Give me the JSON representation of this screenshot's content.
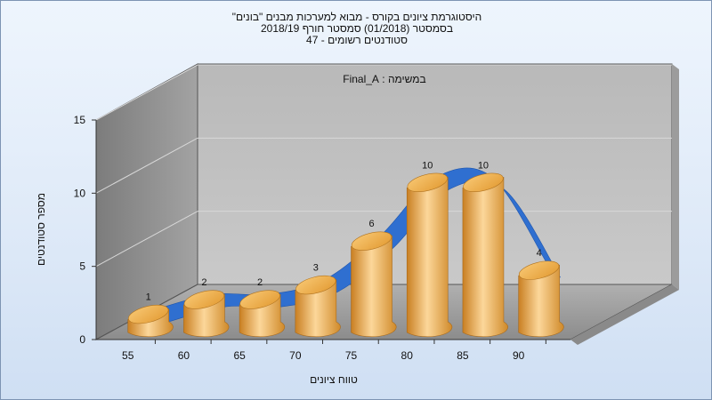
{
  "chart_data": {
    "type": "bar",
    "title_lines": [
      "היסטוגרמת ציונים בקורס - מבוא למערכות מבנים \"בונים\"",
      "בסמסטר  (01/2018)  סמסטר חורף  2018/19",
      "סטודנטים רשומים - 47"
    ],
    "subtitle": "במשימה : Final_A",
    "xlabel": "טווח ציונים",
    "ylabel": "מספר סטודנטים",
    "categories": [
      "55",
      "60",
      "65",
      "70",
      "75",
      "80",
      "85",
      "90"
    ],
    "values": [
      1,
      2,
      2,
      3,
      6,
      10,
      10,
      4
    ],
    "ylim": [
      0,
      15
    ],
    "yticks": [
      0,
      5,
      10,
      15
    ],
    "trend_shown": true,
    "colors": {
      "bar": "#e8a23e",
      "bar_light": "#fcd79a",
      "trend": "#2f6fd0",
      "back_wall": "#b7b7b7",
      "side_wall": "#8a8a8a",
      "floor": "#9e9e9e"
    }
  }
}
